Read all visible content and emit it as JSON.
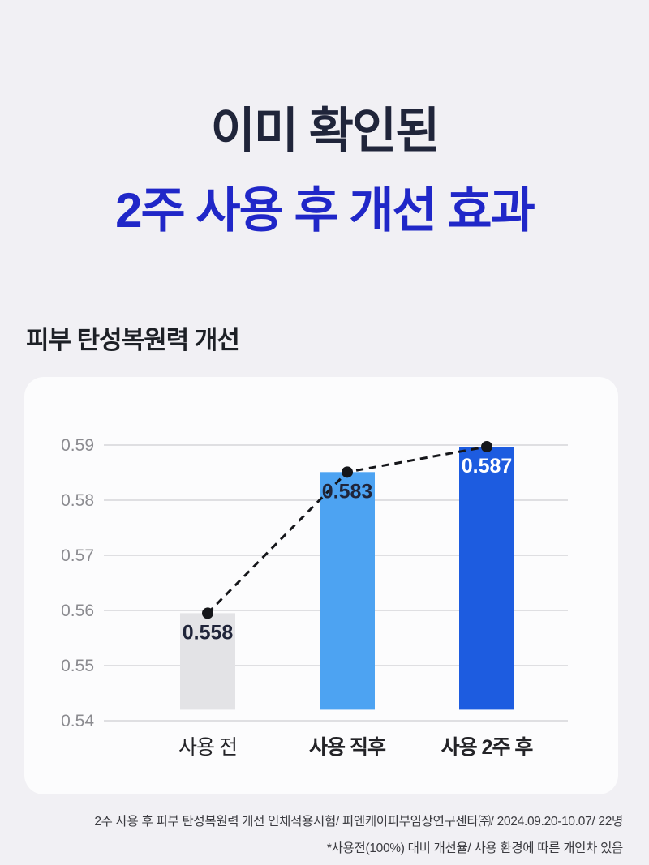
{
  "page": {
    "title_line1": "이미 확인된",
    "title_line2": "2주 사용 후 개선 효과",
    "title_line1_color": "#20253a",
    "title_line2_color": "#2027c8",
    "section_title": "피부 탄성복원력 개선",
    "background_color": "#f1f0f4",
    "card_color": "#fcfcfd"
  },
  "chart_data": {
    "type": "bar",
    "title": "피부 탄성복원력 개선",
    "categories": [
      "사용 전",
      "사용 직후",
      "사용 2주 후"
    ],
    "values": [
      0.558,
      0.583,
      0.587
    ],
    "value_labels": [
      "0.558",
      "0.583",
      "0.587"
    ],
    "bar_colors": [
      "#e3e3e6",
      "#4da3f2",
      "#1d5ce0"
    ],
    "value_label_colors": [
      "#20253a",
      "#20253a",
      "#ffffff"
    ],
    "category_bold": [
      false,
      true,
      true
    ],
    "y_ticks": [
      0.59,
      0.58,
      0.57,
      0.56,
      0.55,
      0.54
    ],
    "ylim": [
      0.54,
      0.59
    ],
    "bar_baseline": 0.542,
    "bar_top_display_values": [
      0.5595,
      0.5851,
      0.5897
    ],
    "grid": true,
    "grid_color": "#dfdfe2",
    "tick_label_color": "#8b8b90",
    "category_label_color": "#232327",
    "trend_line": {
      "style": "dashed",
      "color": "#15161a",
      "marker": "dot"
    },
    "legend": "none",
    "xlabel": "",
    "ylabel": ""
  },
  "footnote": {
    "line1": "2주 사용 후 피부 탄성복원력 개선 인체적용시험/ 피엔케이피부임상연구센타㈜/ 2024.09.20-10.07/ 22명",
    "line2": "*사용전(100%) 대비 개선율/ 사용 환경에 따른 개인차 있음"
  }
}
